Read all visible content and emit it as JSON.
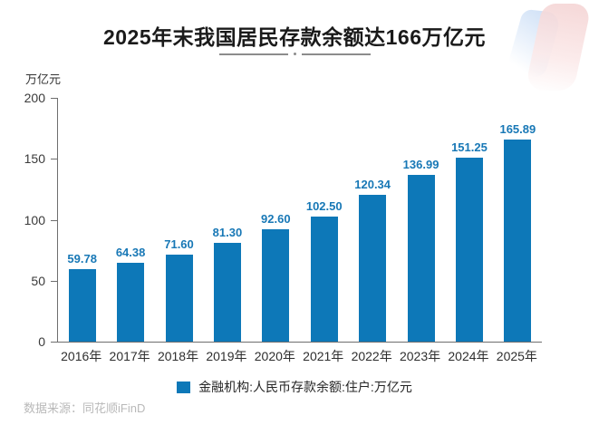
{
  "header": {
    "title": "2025年末我国居民存款余额达166万亿元",
    "unit_label": "万亿元"
  },
  "chart_data": {
    "type": "bar",
    "title": "2025年末我国居民存款余额达166万亿元",
    "categories": [
      "2016年",
      "2017年",
      "2018年",
      "2019年",
      "2020年",
      "2021年",
      "2022年",
      "2023年",
      "2024年",
      "2025年"
    ],
    "values": [
      59.78,
      64.38,
      71.6,
      81.3,
      92.6,
      102.5,
      120.34,
      136.99,
      151.25,
      165.89
    ],
    "value_labels": [
      "59.78",
      "64.38",
      "71.60",
      "81.30",
      "92.60",
      "102.50",
      "120.34",
      "136.99",
      "151.25",
      "165.89"
    ],
    "ylabel": "万亿元",
    "ylim": [
      0,
      200
    ],
    "yticks": [
      0,
      50,
      100,
      150,
      200
    ],
    "grid": false,
    "legend_position": "bottom",
    "bar_color": "#0d78b8",
    "value_label_color": "#1878b6"
  },
  "legend": {
    "label": "金融机构:人民币存款余额:住户:万亿元",
    "swatch_color": "#0d78b8"
  },
  "footer": {
    "source": "数据来源：同花顺iFinD"
  }
}
